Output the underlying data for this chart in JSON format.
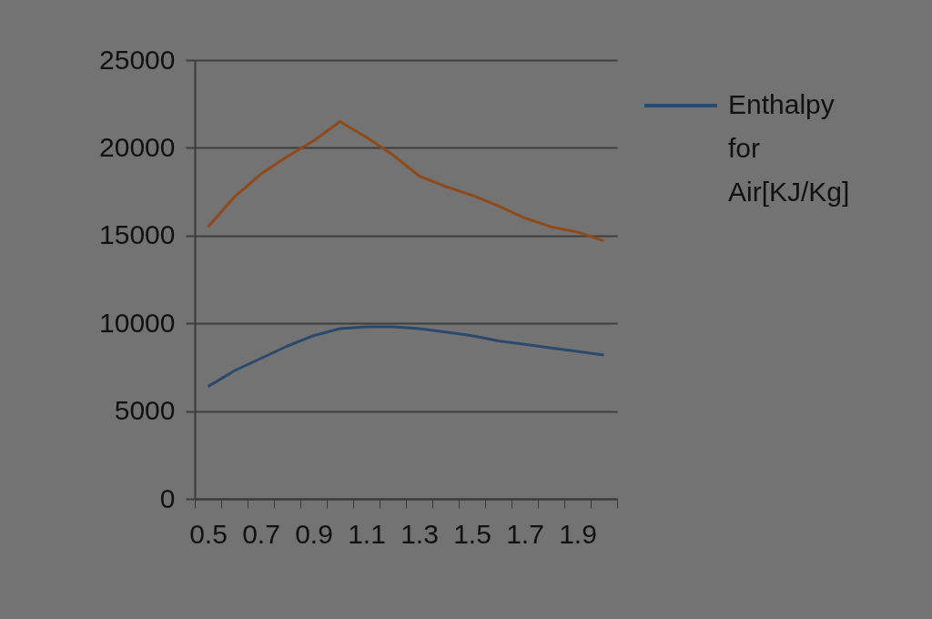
{
  "chart_data": {
    "type": "line",
    "categories": [
      "0.5",
      null,
      "0.7",
      null,
      "0.9",
      null,
      "1.1",
      null,
      "1.3",
      null,
      "1.5",
      null,
      "1.7",
      null,
      "1.9",
      null
    ],
    "series": [
      {
        "name": "Enthalpy for Air[KJ/Kg]",
        "color": "#2b4a6b",
        "values": [
          6400,
          7300,
          8000,
          8700,
          9300,
          9700,
          9800,
          9800,
          9700,
          9500,
          9300,
          9000,
          8800,
          8600,
          8400,
          8200
        ]
      },
      {
        "color": "#8f4a1c",
        "values": [
          15500,
          17200,
          18500,
          19500,
          20400,
          21500,
          20600,
          19600,
          18400,
          17800,
          17300,
          16700,
          16000,
          15500,
          15200,
          14700
        ]
      }
    ],
    "ylim": [
      0,
      25000
    ],
    "yticks": [
      0,
      5000,
      10000,
      15000,
      20000,
      25000
    ],
    "grid": "y",
    "legend": "right",
    "marker": "none",
    "line_style": "solid"
  }
}
